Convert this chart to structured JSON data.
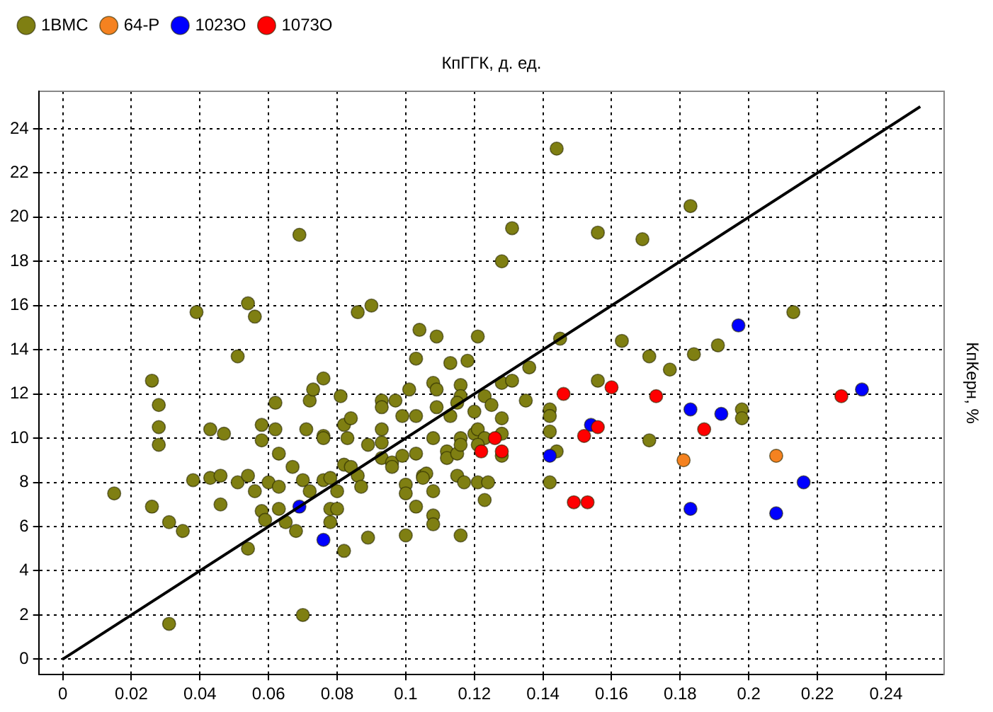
{
  "chart_data": {
    "type": "scatter",
    "xlabel": "КпГГК, д. ед.",
    "ylabel": "КпКерн, %",
    "xlim": [
      -0.007,
      0.257
    ],
    "ylim": [
      -0.7,
      25.7
    ],
    "xticks": [
      0,
      0.02,
      0.04,
      0.06,
      0.08,
      0.1,
      0.12,
      0.14,
      0.16,
      0.18,
      0.2,
      0.22,
      0.24
    ],
    "yticks": [
      0,
      2,
      4,
      6,
      8,
      10,
      12,
      14,
      16,
      18,
      20,
      22,
      24
    ],
    "grid": true,
    "legend": "top left",
    "marker": "circle",
    "series": [
      {
        "name": "1BMC",
        "color": "#7f7f12",
        "x": [
          0.015,
          0.026,
          0.028,
          0.028,
          0.028,
          0.026,
          0.031,
          0.035,
          0.031,
          0.038,
          0.043,
          0.047,
          0.043,
          0.046,
          0.046,
          0.051,
          0.054,
          0.056,
          0.054,
          0.058,
          0.058,
          0.062,
          0.062,
          0.063,
          0.06,
          0.063,
          0.067,
          0.058,
          0.059,
          0.063,
          0.065,
          0.07,
          0.068,
          0.072,
          0.071,
          0.072,
          0.073,
          0.076,
          0.076,
          0.076,
          0.076,
          0.078,
          0.08,
          0.078,
          0.078,
          0.08,
          0.082,
          0.07,
          0.081,
          0.082,
          0.084,
          0.083,
          0.082,
          0.069,
          0.039,
          0.054,
          0.056,
          0.051,
          0.086,
          0.087,
          0.084,
          0.086,
          0.089,
          0.089,
          0.093,
          0.093,
          0.093,
          0.093,
          0.097,
          0.093,
          0.096,
          0.096,
          0.099,
          0.099,
          0.101,
          0.103,
          0.103,
          0.1,
          0.1,
          0.1,
          0.103,
          0.105,
          0.106,
          0.105,
          0.108,
          0.109,
          0.109,
          0.108,
          0.108,
          0.108,
          0.108,
          0.112,
          0.112,
          0.113,
          0.115,
          0.116,
          0.116,
          0.115,
          0.116,
          0.116,
          0.115,
          0.117,
          0.116,
          0.12,
          0.123,
          0.125,
          0.12,
          0.121,
          0.123,
          0.121,
          0.121,
          0.124,
          0.123,
          0.128,
          0.131,
          0.128,
          0.128,
          0.128,
          0.135,
          0.142,
          0.142,
          0.142,
          0.144,
          0.142,
          0.156,
          0.171,
          0.09,
          0.104,
          0.109,
          0.103,
          0.113,
          0.118,
          0.121,
          0.128,
          0.131,
          0.144,
          0.156,
          0.169,
          0.145,
          0.163,
          0.171,
          0.136,
          0.183,
          0.213,
          0.191,
          0.184,
          0.177,
          0.198,
          0.198
        ],
        "values": [
          7.5,
          12.6,
          11.5,
          10.5,
          9.7,
          6.9,
          6.2,
          5.8,
          1.6,
          8.1,
          10.4,
          10.2,
          8.2,
          8.3,
          7.0,
          8.0,
          8.3,
          7.6,
          5.0,
          10.6,
          9.9,
          10.4,
          11.6,
          9.3,
          8.0,
          7.8,
          8.7,
          6.7,
          6.3,
          6.8,
          6.2,
          8.1,
          5.8,
          7.6,
          10.4,
          11.7,
          12.2,
          12.7,
          10.1,
          10.0,
          8.1,
          8.2,
          7.6,
          6.2,
          6.8,
          6.8,
          4.9,
          2.0,
          11.9,
          10.6,
          10.9,
          10.0,
          8.8,
          19.2,
          15.7,
          16.1,
          15.5,
          13.7,
          8.3,
          7.8,
          8.7,
          15.7,
          5.5,
          9.7,
          10.4,
          9.8,
          11.7,
          11.4,
          11.7,
          9.1,
          8.9,
          8.7,
          9.2,
          11.0,
          12.2,
          11.0,
          9.3,
          7.9,
          7.5,
          5.6,
          6.9,
          8.3,
          8.4,
          8.2,
          12.5,
          12.2,
          11.4,
          10.0,
          7.6,
          6.5,
          6.1,
          9.4,
          9.1,
          11.0,
          9.3,
          12.4,
          11.9,
          11.6,
          10.0,
          9.7,
          8.3,
          8.0,
          5.6,
          11.2,
          11.9,
          11.5,
          10.2,
          10.4,
          10.0,
          9.7,
          8.0,
          8.0,
          7.2,
          12.5,
          12.6,
          10.9,
          10.2,
          9.2,
          11.7,
          11.3,
          11.0,
          10.3,
          9.4,
          8.0,
          12.6,
          9.9,
          16.0,
          14.9,
          14.6,
          13.6,
          13.4,
          13.5,
          14.6,
          18.0,
          19.5,
          23.1,
          19.3,
          19.0,
          14.5,
          14.4,
          13.7,
          13.2,
          20.5,
          15.7,
          14.2,
          13.8,
          13.1,
          11.3,
          10.9
        ]
      },
      {
        "name": "64-P",
        "color": "#f58220",
        "x": [
          0.181,
          0.208
        ],
        "values": [
          9.0,
          9.2
        ]
      },
      {
        "name": "1023O",
        "color": "#0000ff",
        "x": [
          0.069,
          0.076,
          0.142,
          0.154,
          0.197,
          0.183,
          0.192,
          0.216,
          0.183,
          0.208,
          0.233
        ],
        "values": [
          6.9,
          5.4,
          9.2,
          10.6,
          15.1,
          11.3,
          11.1,
          8.0,
          6.8,
          6.6,
          12.2
        ]
      },
      {
        "name": "1073O",
        "color": "#ff0000",
        "x": [
          0.122,
          0.126,
          0.128,
          0.146,
          0.149,
          0.153,
          0.152,
          0.156,
          0.16,
          0.173,
          0.187,
          0.227
        ],
        "values": [
          9.4,
          10.0,
          9.4,
          12.0,
          7.1,
          7.1,
          10.1,
          10.5,
          12.3,
          11.9,
          10.4,
          11.9
        ]
      },
      {
        "type": "line",
        "color": "#000000",
        "marker": "none",
        "x": [
          0,
          0.25
        ],
        "values": [
          0,
          25
        ]
      }
    ]
  }
}
